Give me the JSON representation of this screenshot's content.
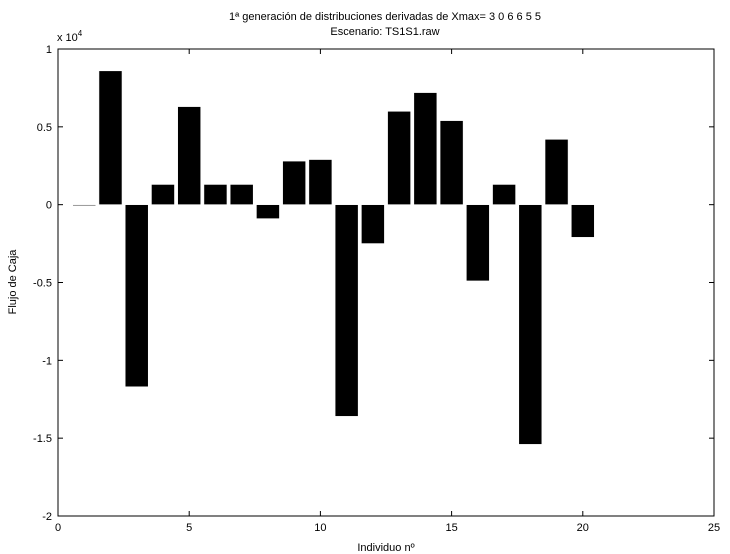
{
  "chart_data": {
    "type": "bar",
    "title": "1ª generación de distribuciones derivadas de Xmax= 3  0  6  6  5  5",
    "subtitle": "Escenario: TS1S1.raw",
    "xlabel": "Individuo nº",
    "ylabel": "Flujo de Caja",
    "y_multiplier": "x 10",
    "y_multiplier_exponent": "4",
    "xlim": [
      0,
      25
    ],
    "ylim": [
      -2,
      1
    ],
    "x_ticks": [
      0,
      5,
      10,
      15,
      20,
      25
    ],
    "x_tick_labels": [
      "0",
      "5",
      "10",
      "15",
      "20",
      "25"
    ],
    "y_ticks": [
      -2,
      -1.5,
      -1,
      -0.5,
      0,
      0.5,
      1
    ],
    "y_tick_labels": [
      "-2",
      "-1.5",
      "-1",
      "-0.5",
      "0",
      "0.5",
      "1"
    ],
    "grid": false,
    "bar_color": "#000000",
    "x": [
      1,
      2,
      3,
      4,
      5,
      6,
      7,
      8,
      9,
      10,
      11,
      12,
      13,
      14,
      15,
      16,
      17,
      18,
      19,
      20
    ],
    "values": [
      0.0,
      0.86,
      -1.17,
      0.13,
      0.63,
      0.13,
      0.13,
      -0.09,
      0.28,
      0.29,
      -1.36,
      -0.25,
      0.6,
      0.72,
      0.54,
      -0.49,
      0.13,
      -1.54,
      0.42,
      -0.21
    ]
  }
}
